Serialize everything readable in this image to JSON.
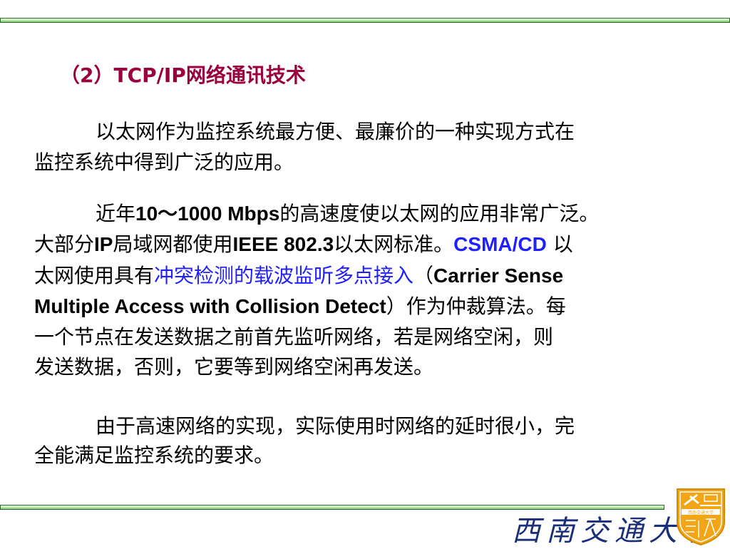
{
  "title": "（2）TCP/IP网络通讯技术",
  "colors": {
    "title": "#99003d",
    "highlight": "#1f1fff",
    "rule": "#2d6b2d"
  },
  "lines": [
    [
      {
        "t": "以太网作为监控系统最方便、最廉价的一种实现方式在"
      }
    ],
    [
      {
        "t": "监控系统中得到广泛的应用。"
      }
    ],
    [
      {
        "t": "近年"
      },
      {
        "t": "10～1000 Mbps",
        "b": true
      },
      {
        "t": "的高速度使以太网的应用非常广泛。"
      }
    ],
    [
      {
        "t": "大部分"
      },
      {
        "t": "IP",
        "b": true
      },
      {
        "t": "局域网都使用"
      },
      {
        "t": "IEEE 802.3",
        "b": true
      },
      {
        "t": "以太网标准。"
      },
      {
        "t": "CSMA/CD",
        "b": true,
        "blue": true
      },
      {
        "t": " 以"
      }
    ],
    [
      {
        "t": "太网使用具有"
      },
      {
        "t": "冲突检测的载波监听多点接入",
        "blue": true
      },
      {
        "t": "（"
      },
      {
        "t": "Carrier Sense",
        "b": true
      }
    ],
    [
      {
        "t": "Multiple Access with Collision Detect",
        "b": true
      },
      {
        "t": "）作为仲裁算法。每"
      }
    ],
    [
      {
        "t": "一个节点在发送数据之前首先监听网络，若是网络空闲，则"
      }
    ],
    [
      {
        "t": "发送数据，否则，它要等到网络空闲再发送。"
      }
    ],
    [
      {
        "t": "由于高速网络的实现，实际使用时网络的延时很小，完"
      }
    ],
    [
      {
        "t": "全能满足监控系统的要求。"
      }
    ]
  ],
  "footer": {
    "university_name": "西南交通大学",
    "logo_text": "西南交通大学"
  }
}
